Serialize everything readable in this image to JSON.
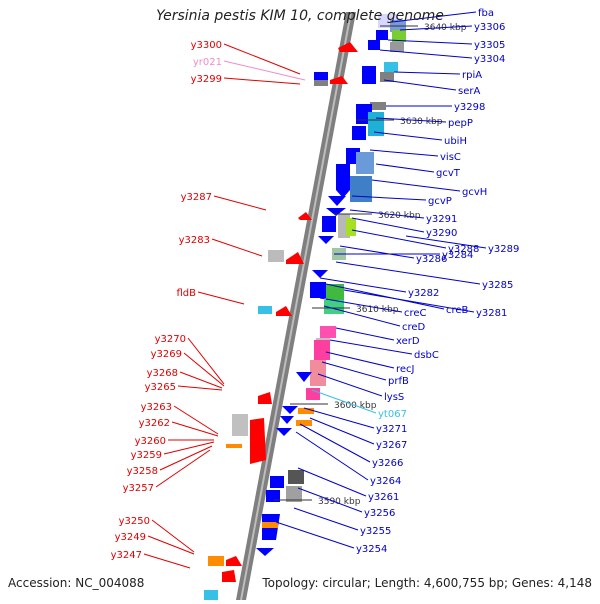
{
  "title": "Yersinia pestis KIM 10, complete genome",
  "accession": "Accession: NC_004088",
  "topology": "Topology: circular; Length: 4,600,755 bp; Genes: 4,148",
  "colors": {
    "backbone": "#7f7f7f",
    "label_left": "#e00000",
    "label_right": "#0000cc",
    "rna_pink": "#f08ccc",
    "rna_cyan": "#36c0e6"
  },
  "ticks": [
    "3640 kbp",
    "3630 kbp",
    "3620 kbp",
    "3610 kbp",
    "3600 kbp",
    "3590 kbp"
  ],
  "left_labels": [
    "y3300",
    "yr021",
    "y3299",
    "y3287",
    "y3283",
    "fldB",
    "y3270",
    "y3269",
    "y3268",
    "y3265",
    "y3263",
    "y3262",
    "y3260",
    "y3259",
    "y3258",
    "y3257",
    "y3250",
    "y3249",
    "y3247"
  ],
  "right_labels": [
    "fba",
    "y3306",
    "y3305",
    "y3304",
    "rpiA",
    "serA",
    "y3298",
    "pepP",
    "ubiH",
    "visC",
    "gcvT",
    "gcvH",
    "gcvP",
    "y3291",
    "y3290",
    "y3288",
    "y3289",
    "y3286",
    "y3284",
    "y3285",
    "y3282",
    "creB",
    "y3281",
    "creC",
    "creD",
    "xerD",
    "dsbC",
    "recJ",
    "prfB",
    "lysS",
    "yt067",
    "y3271",
    "y3267",
    "y3266",
    "y3264",
    "y3261",
    "y3256",
    "y3255",
    "y3254"
  ]
}
